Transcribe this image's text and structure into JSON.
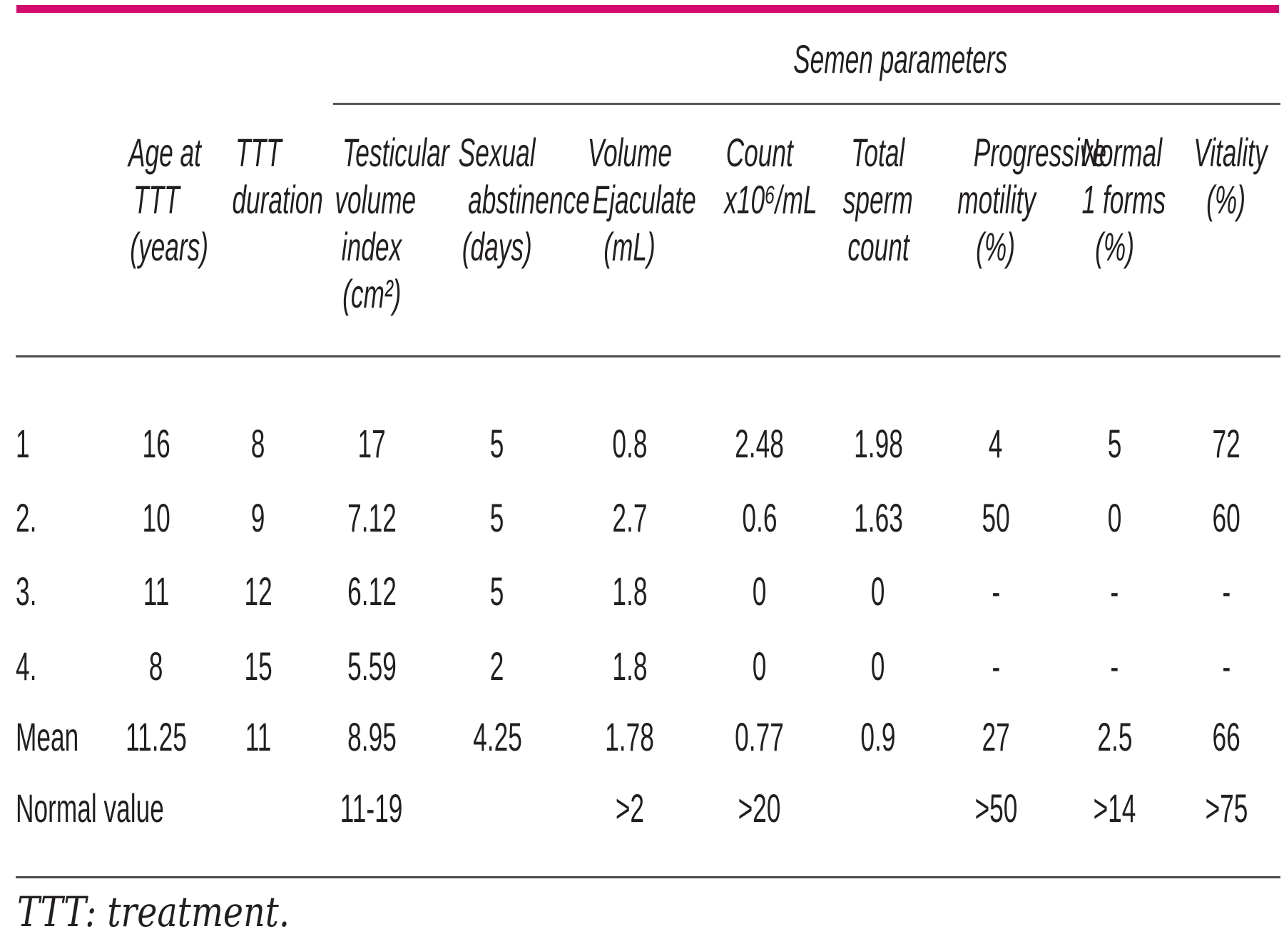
{
  "accent_color": "#d40a6e",
  "rule_color": "#4a4a4c",
  "text_color": "#231f20",
  "table": {
    "group_header": "Semen parameters",
    "columns": [
      {
        "id": "row-label",
        "lines": []
      },
      {
        "id": "age-at-ttt",
        "lines": [
          "Age at",
          "TTT",
          "(years)"
        ]
      },
      {
        "id": "ttt-duration",
        "lines": [
          "TTT",
          "duration"
        ]
      },
      {
        "id": "testicular-index",
        "lines": [
          "Testicular",
          "volume",
          "index",
          "(cm²)"
        ]
      },
      {
        "id": "abstinence",
        "lines": [
          "Sexual",
          "abstinence",
          "(days)"
        ]
      },
      {
        "id": "volume-ejaculate",
        "lines": [
          "Volume",
          "Ejaculate",
          "(mL)"
        ]
      },
      {
        "id": "count",
        "lines": [
          "Count",
          "x10⁶/mL"
        ]
      },
      {
        "id": "total-sperm",
        "lines": [
          "Total",
          "sperm",
          "count"
        ]
      },
      {
        "id": "motility",
        "lines": [
          "Progressive",
          "motility",
          "(%)"
        ]
      },
      {
        "id": "normal-forms",
        "lines": [
          "Normal",
          "1 forms",
          "(%)"
        ]
      },
      {
        "id": "vitality",
        "lines": [
          "Vitality",
          "(%)"
        ]
      }
    ],
    "rows": [
      {
        "cells": [
          "1",
          "16",
          "8",
          "17",
          "5",
          "0.8",
          "2.48",
          "1.98",
          "4",
          "5",
          "72"
        ]
      },
      {
        "cells": [
          "2.",
          "10",
          "9",
          "7.12",
          "5",
          "2.7",
          "0.6",
          "1.63",
          "50",
          "0",
          "60"
        ]
      },
      {
        "cells": [
          "3.",
          "11",
          "12",
          "6.12",
          "5",
          "1.8",
          "0",
          "0",
          "-",
          "-",
          "-"
        ]
      },
      {
        "cells": [
          "4.",
          "8",
          "15",
          "5.59",
          "2",
          "1.8",
          "0",
          "0",
          "-",
          "-",
          "-"
        ]
      },
      {
        "cells": [
          "Mean",
          "11.25",
          "11",
          "8.95",
          "4.25",
          "1.78",
          "0.77",
          "0.9",
          "27",
          "2.5",
          "66"
        ]
      },
      {
        "cells": [
          "Normal value",
          "",
          "",
          "11-19",
          "",
          ">2",
          ">20",
          "",
          ">50",
          ">14",
          ">75"
        ]
      }
    ]
  },
  "footnote": "TTT: treatment."
}
